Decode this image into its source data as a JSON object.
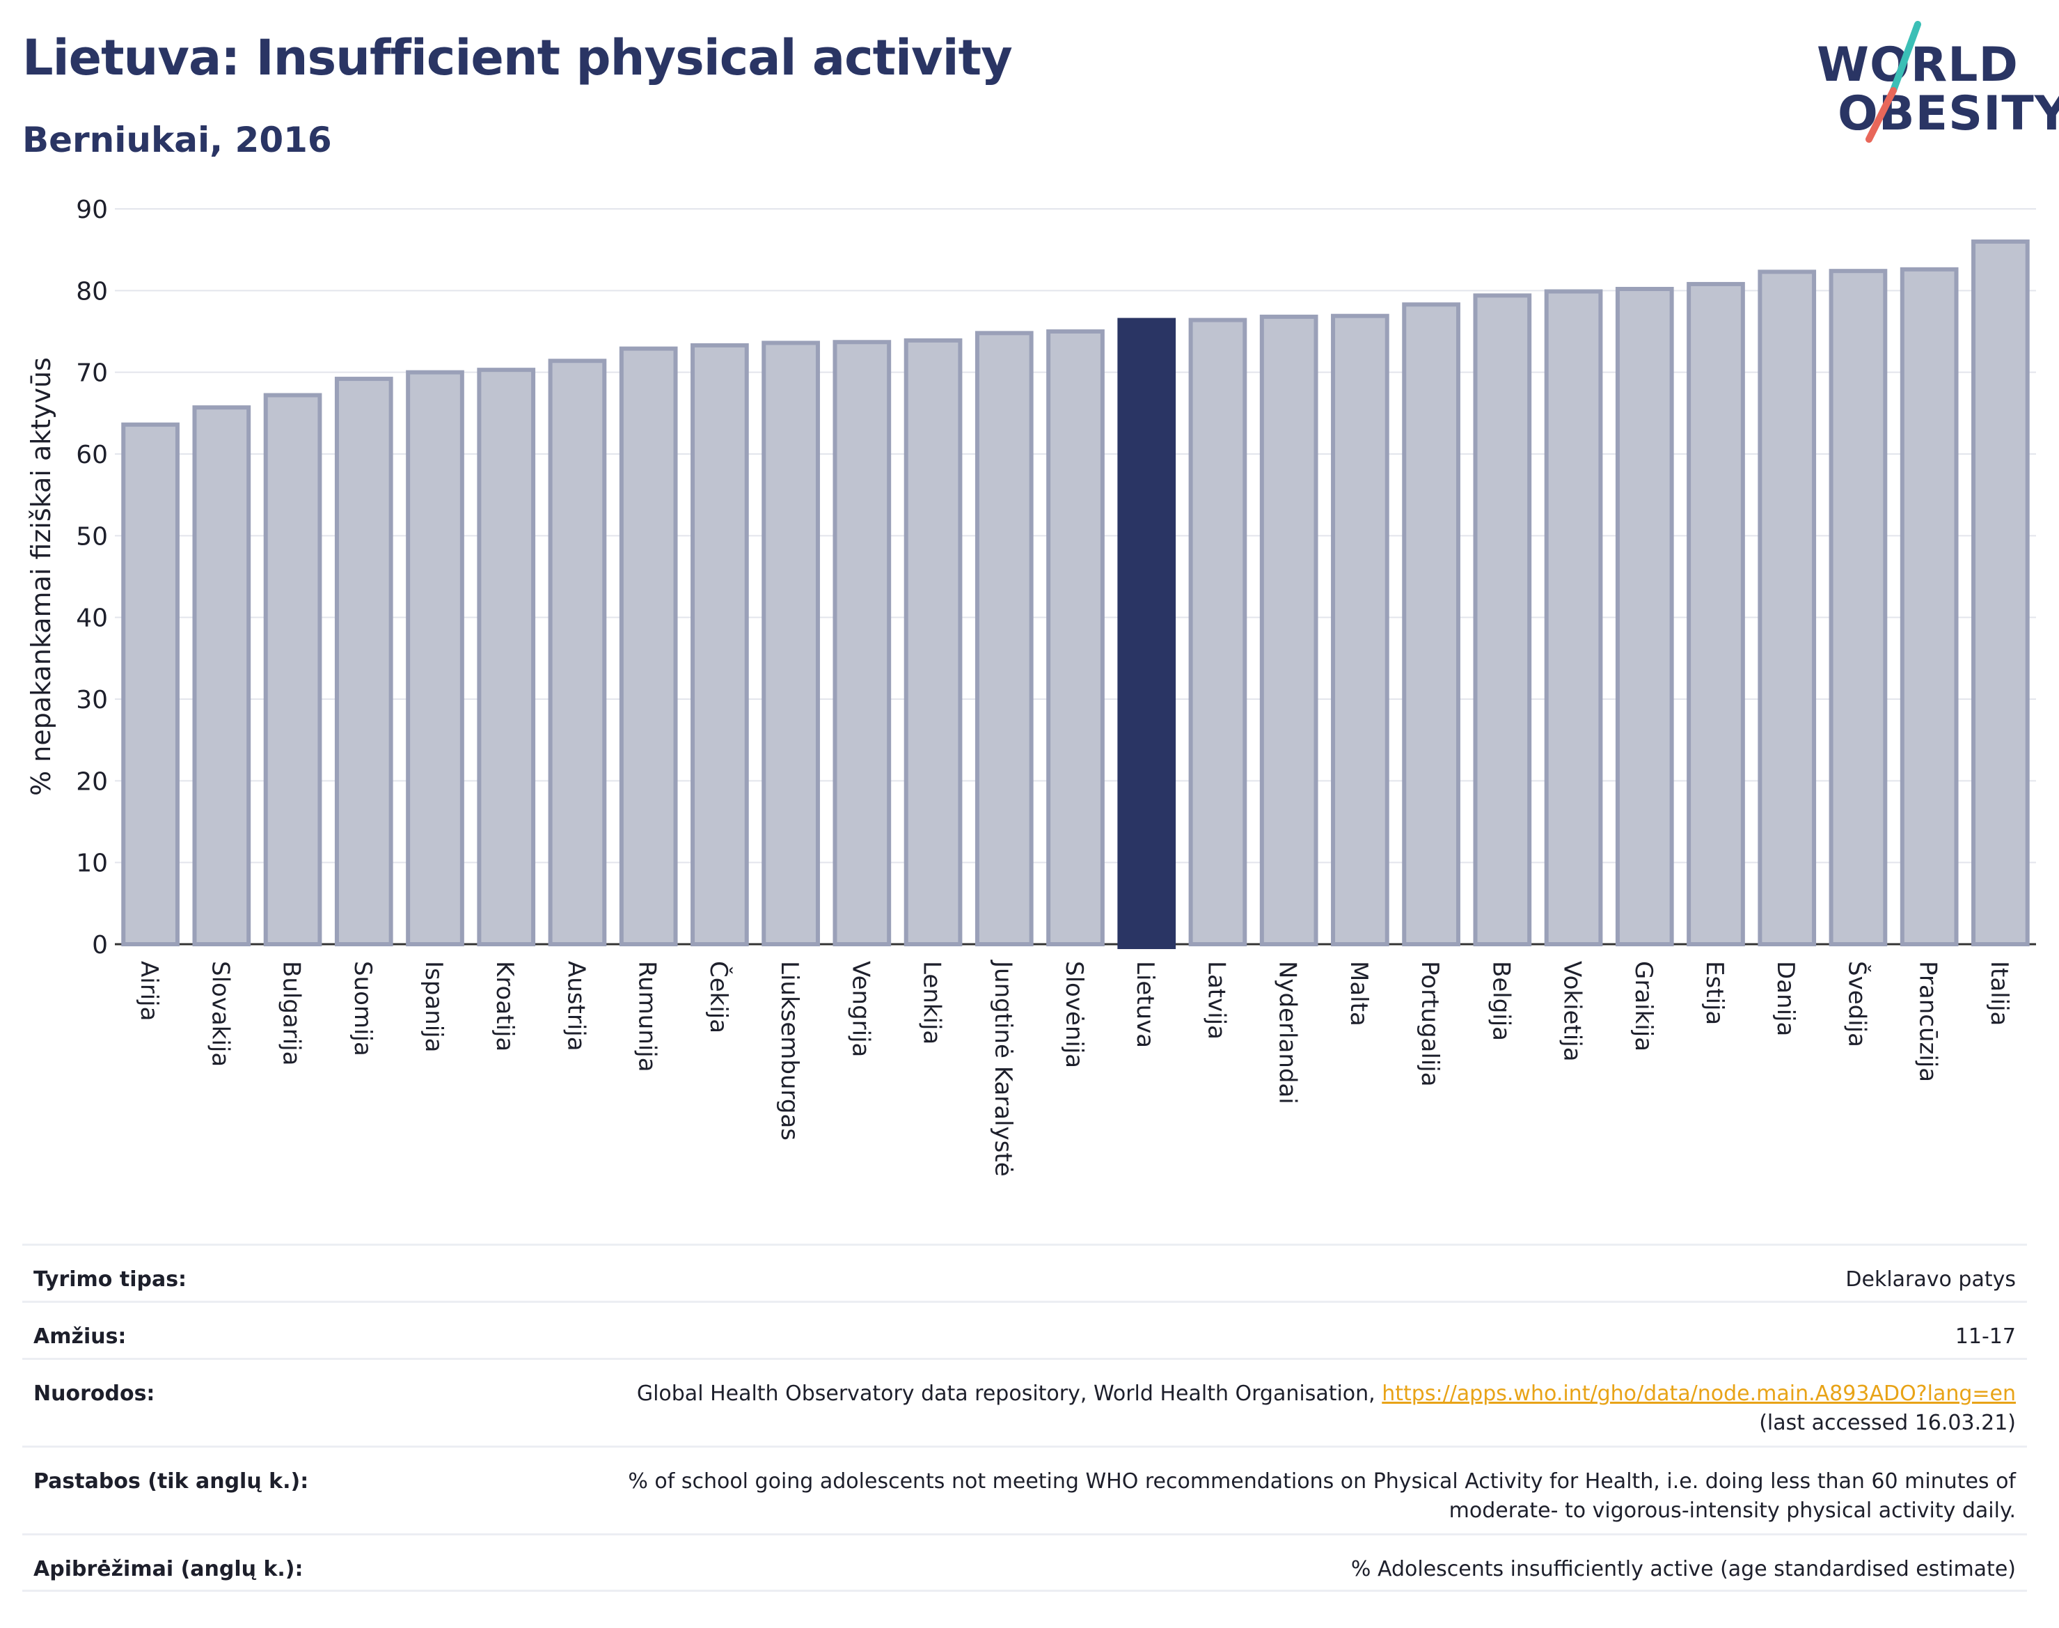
{
  "header": {
    "title": "Lietuva: Insufficient physical activity",
    "subtitle": "Berniukai, 2016"
  },
  "logo": {
    "line1": "WORLD",
    "line2": "OBESITY",
    "slash_colors": [
      "#3bbfb6",
      "#e8675a"
    ],
    "text_color": "#2a3564"
  },
  "chart_data": {
    "type": "bar",
    "title": "Lietuva: Insufficient physical activity",
    "subtitle": "Berniukai, 2016",
    "xlabel": "",
    "ylabel": "% nepakankamai fiziškai aktyvūs",
    "ylim": [
      0,
      90
    ],
    "yticks": [
      0,
      10,
      20,
      30,
      40,
      50,
      60,
      70,
      80,
      90
    ],
    "grid": true,
    "highlight": "Lietuva",
    "colors": {
      "bar": "#bfc3d0",
      "bar_edge": "#9aa0b8",
      "highlight": "#2a3564"
    },
    "categories": [
      "Airija",
      "Slovakija",
      "Bulgarija",
      "Suomija",
      "Ispanija",
      "Kroatija",
      "Austrija",
      "Rumunija",
      "Čekija",
      "Liuksemburgas",
      "Vengrija",
      "Lenkija",
      "Jungtinė Karalystė",
      "Slovėnija",
      "Lietuva",
      "Latvija",
      "Nyderlandai",
      "Malta",
      "Portugalija",
      "Belgija",
      "Vokietija",
      "Graikija",
      "Estija",
      "Danija",
      "Švedija",
      "Prancūzija",
      "Italija"
    ],
    "values": [
      63.6,
      65.7,
      67.2,
      69.2,
      70.0,
      70.3,
      71.4,
      72.9,
      73.3,
      73.6,
      73.7,
      73.9,
      74.8,
      75.0,
      76.4,
      76.4,
      76.8,
      76.9,
      78.3,
      79.4,
      79.9,
      80.2,
      80.8,
      82.3,
      82.4,
      82.6,
      86.0
    ]
  },
  "info": {
    "rows": [
      {
        "label": "Tyrimo tipas:",
        "value": "Deklaravo patys"
      },
      {
        "label": "Amžius:",
        "value": "11-17"
      },
      {
        "label": "Nuorodos:",
        "value": "Global Health Observatory data repository, World Health Organisation,",
        "link": "https://apps.who.int/gho/data/node.main.A893ADO?lang=en",
        "value2": "(last accessed 16.03.21)"
      },
      {
        "label": "Pastabos (tik anglų k.):",
        "value": "% of school going adolescents not meeting WHO recommendations on Physical Activity for Health, i.e. doing less than 60 minutes of",
        "value2": "moderate- to vigorous-intensity physical activity daily."
      },
      {
        "label": "Apibrėžimai (anglų k.):",
        "value": "% Adolescents insufficiently active (age standardised estimate)"
      }
    ]
  }
}
